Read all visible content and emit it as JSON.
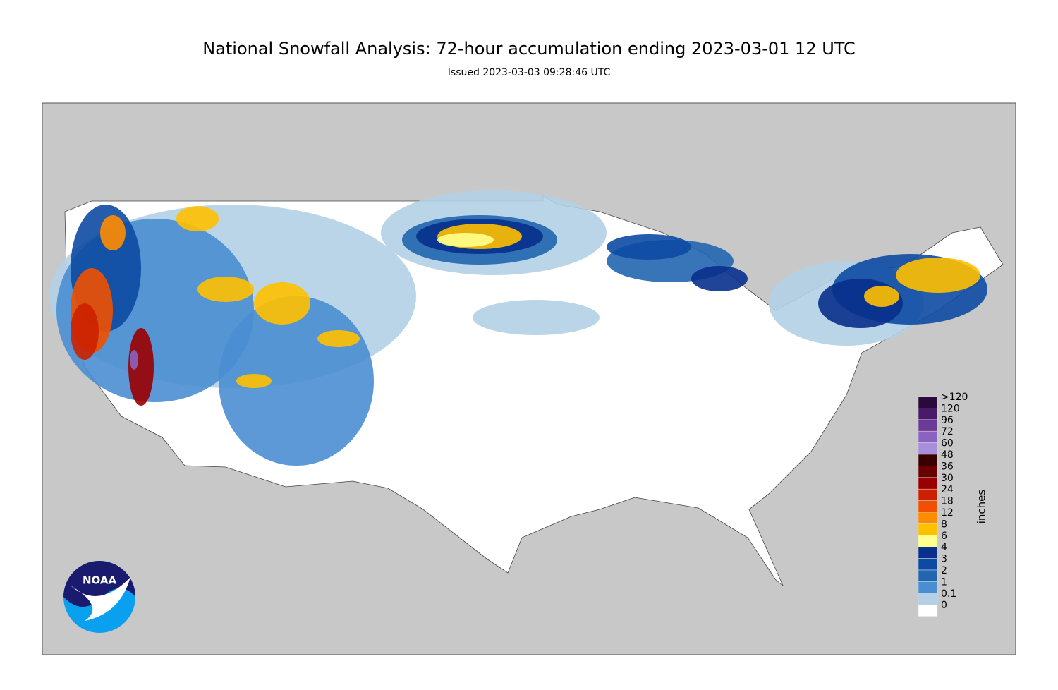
{
  "header": {
    "title": "National Snowfall Analysis: 72-hour accumulation ending 2023-03-01 12 UTC",
    "subtitle": "Issued 2023-03-03 09:28:46 UTC"
  },
  "legend": {
    "unit": "inches",
    "items": [
      {
        "label": ">120",
        "color": "#2a0a3c"
      },
      {
        "label": "120",
        "color": "#4a1a6a"
      },
      {
        "label": "96",
        "color": "#6a3a96"
      },
      {
        "label": "72",
        "color": "#8a63c0"
      },
      {
        "label": "60",
        "color": "#a88fdc"
      },
      {
        "label": "48",
        "color": "#3a0000"
      },
      {
        "label": "36",
        "color": "#6a0000"
      },
      {
        "label": "30",
        "color": "#9a0000"
      },
      {
        "label": "24",
        "color": "#cc2000"
      },
      {
        "label": "18",
        "color": "#f05000"
      },
      {
        "label": "12",
        "color": "#ff8c00"
      },
      {
        "label": "8",
        "color": "#ffc000"
      },
      {
        "label": "6",
        "color": "#ffff8c"
      },
      {
        "label": "4",
        "color": "#08308c"
      },
      {
        "label": "3",
        "color": "#0d4aa3"
      },
      {
        "label": "2",
        "color": "#2166b0"
      },
      {
        "label": "1",
        "color": "#4a8ed2"
      },
      {
        "label": "0.1",
        "color": "#b4d0e6"
      },
      {
        "label": "0",
        "color": "#ffffff"
      }
    ]
  },
  "logo": {
    "text": "NOAA"
  }
}
